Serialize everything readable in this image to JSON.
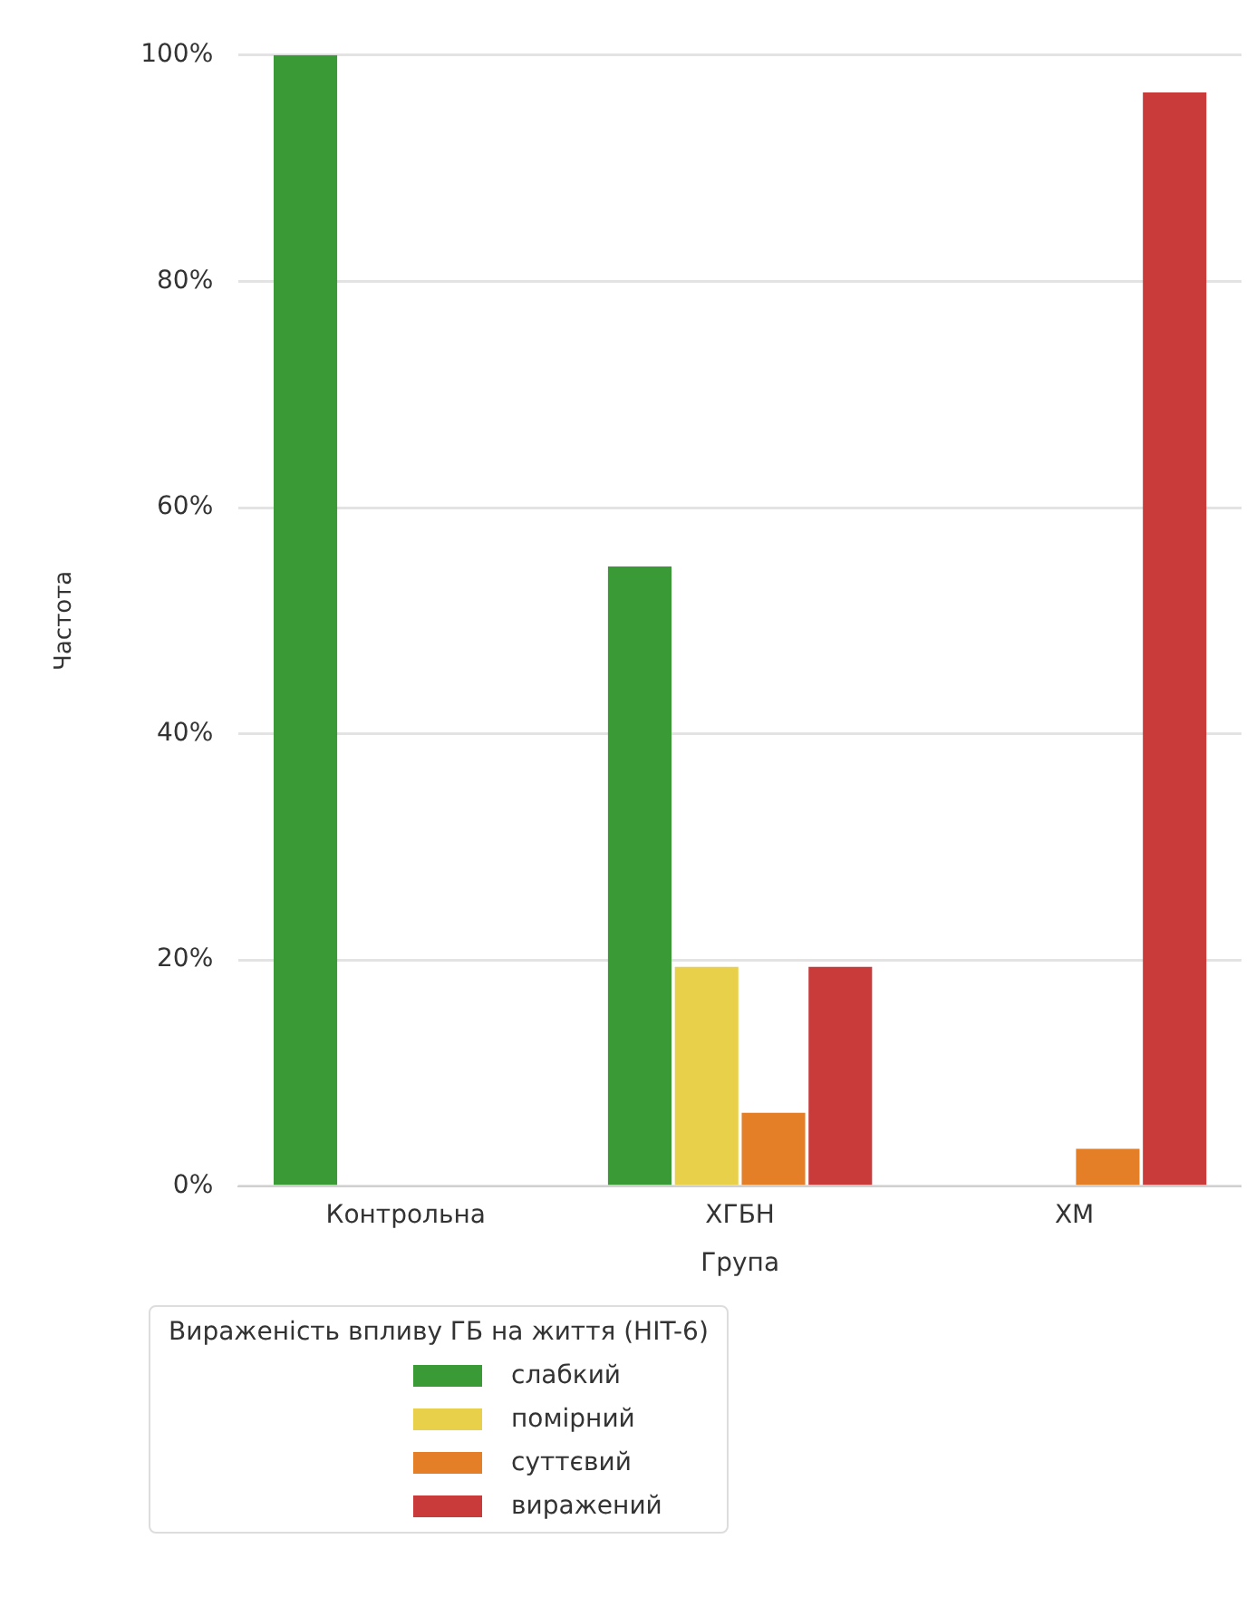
{
  "chart_data": {
    "type": "bar",
    "xlabel": "Група",
    "ylabel": "Частота",
    "legend_title": "Вираженість впливу ГБ на життя (HIT-6)",
    "categories": [
      "Контрольна",
      "ХГБН",
      "ХМ"
    ],
    "series": [
      {
        "name": "слабкий",
        "color": "#3a9a35",
        "values": [
          100,
          54.8,
          0
        ]
      },
      {
        "name": "помірний",
        "color": "#e8d04a",
        "values": [
          0,
          19.4,
          0
        ]
      },
      {
        "name": "суттєвий",
        "color": "#e57f27",
        "values": [
          0,
          6.5,
          3.3
        ]
      },
      {
        "name": "виражений",
        "color": "#c93a3a",
        "values": [
          0,
          19.4,
          96.7
        ]
      }
    ],
    "ylim": [
      0,
      100
    ],
    "yticks": [
      {
        "value": 0,
        "label": "0%"
      },
      {
        "value": 20,
        "label": "20%"
      },
      {
        "value": 40,
        "label": "40%"
      },
      {
        "value": 60,
        "label": "60%"
      },
      {
        "value": 80,
        "label": "80%"
      },
      {
        "value": 100,
        "label": "100%"
      }
    ],
    "grid": "y",
    "legend": "bottom"
  }
}
